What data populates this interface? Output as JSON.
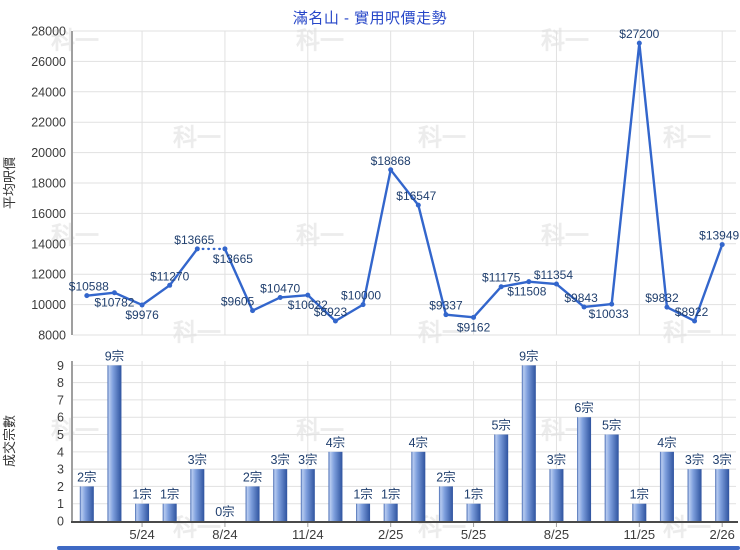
{
  "title": "滿名山 - 實用呎價走勢",
  "watermark": {
    "text": "科一"
  },
  "colors": {
    "title": "#2646c8",
    "line": "#3366cc",
    "value_label": "#21406f",
    "grid": "#e1e1e1",
    "axis_light": "#9f9f9f",
    "axis_dark": "#4a4a4a",
    "tick_label": "#3c3c3c",
    "axis_title": "#333333",
    "watermark": "#ececec",
    "bar_dark": "#3b61ad",
    "bar_light": "#b7cbf0",
    "bar_mid": "#7e9fdd",
    "bar_edge": "#2e539f",
    "bottom_strip": "#3e69c4"
  },
  "x_axis": {
    "tick_labels": [
      "5/24",
      "8/24",
      "11/24",
      "2/25",
      "5/25",
      "8/25",
      "11/25",
      "2/26"
    ],
    "tick_indexes": [
      2,
      5,
      8,
      11,
      14,
      17,
      20,
      23
    ]
  },
  "chart_data": [
    {
      "type": "line",
      "title": "滿名山 - 實用呎價走勢",
      "ylabel": "平均呎價",
      "ylim": [
        8000,
        28000
      ],
      "ytick_step": 2000,
      "y_ticks": [
        "28000",
        "26000",
        "24000",
        "22000",
        "20000",
        "18000",
        "16000",
        "14000",
        "12000",
        "10000",
        "8000"
      ],
      "grid": "on",
      "legend": "none",
      "x": [
        "3/24",
        "4/24",
        "5/24",
        "6/24",
        "7/24",
        "8/24",
        "9/24",
        "10/24",
        "11/24",
        "12/24",
        "1/25",
        "2/25",
        "3/25",
        "4/25",
        "5/25",
        "6/25",
        "7/25",
        "8/25",
        "9/25",
        "10/25",
        "11/25",
        "12/25",
        "1/26",
        "2/26"
      ],
      "values": [
        10588,
        10782,
        9976,
        11270,
        13665,
        13665,
        9605,
        10470,
        10622,
        8923,
        10000,
        18868,
        16547,
        9337,
        9162,
        11175,
        11508,
        11354,
        9843,
        10033,
        27200,
        9832,
        8922,
        13949
      ],
      "point_labels": [
        "$10588",
        "$10782",
        "$9976",
        "$11270",
        "$13665",
        "$13665",
        "$9605",
        "$10470",
        "$10622",
        "$8923",
        "$10000",
        "$18868",
        "$16547",
        "$9337",
        "$9162",
        "$11175",
        "$11508",
        "$11354",
        "$9843",
        "$10033",
        "$27200",
        "$9832",
        "$8922",
        "$13949"
      ],
      "label_side": [
        "above",
        "below",
        "below",
        "above",
        "above",
        "below",
        "above",
        "above",
        "below",
        "above",
        "above",
        "above",
        "above",
        "above",
        "below",
        "above",
        "below",
        "above",
        "above",
        "below",
        "above",
        "above",
        "above",
        "above"
      ],
      "label_dx": [
        2,
        0,
        0,
        0,
        -3,
        8,
        -15,
        0,
        0,
        -5,
        -2,
        0,
        -2,
        0,
        0,
        0,
        -2,
        -3,
        -3,
        -3,
        0,
        -5,
        -3,
        -3
      ],
      "dotted_segment": [
        4,
        5
      ],
      "dotted_segment_note": "dotted connector between the two $13665 points (month with 0 transactions)"
    },
    {
      "type": "bar",
      "ylabel": "成交宗數",
      "ylim": [
        0,
        9
      ],
      "y_ticks": [
        "9",
        "8",
        "7",
        "6",
        "5",
        "4",
        "3",
        "2",
        "1",
        "0"
      ],
      "grid": "on",
      "legend": "none",
      "categories": [
        "3/24",
        "4/24",
        "5/24",
        "6/24",
        "7/24",
        "8/24",
        "9/24",
        "10/24",
        "11/24",
        "12/24",
        "1/25",
        "2/25",
        "3/25",
        "4/25",
        "5/25",
        "6/25",
        "7/25",
        "8/25",
        "9/25",
        "10/25",
        "11/25",
        "12/25",
        "1/26",
        "2/26"
      ],
      "values": [
        2,
        9,
        1,
        1,
        3,
        0,
        2,
        3,
        3,
        4,
        1,
        1,
        4,
        2,
        1,
        5,
        9,
        3,
        6,
        5,
        1,
        4,
        3,
        3
      ],
      "bar_labels": [
        "2宗",
        "9宗",
        "1宗",
        "1宗",
        "3宗",
        "0宗",
        "2宗",
        "3宗",
        "3宗",
        "4宗",
        "1宗",
        "1宗",
        "4宗",
        "2宗",
        "1宗",
        "5宗",
        "9宗",
        "3宗",
        "6宗",
        "5宗",
        "1宗",
        "4宗",
        "3宗",
        "3宗"
      ]
    }
  ]
}
